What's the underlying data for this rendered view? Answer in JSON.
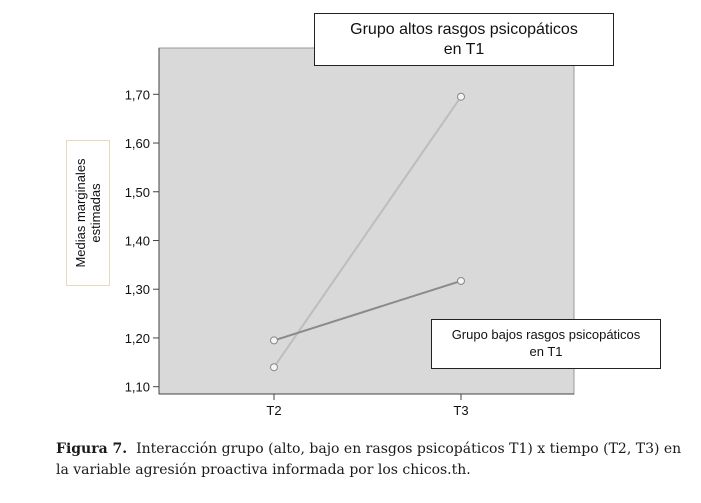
{
  "chart_data": {
    "type": "line",
    "categories": [
      "T2",
      "T3"
    ],
    "series": [
      {
        "name": "Grupo altos rasgos psicopáticos en T1",
        "values": [
          1.14,
          1.695
        ],
        "color": "#bdbdbd"
      },
      {
        "name": "Grupo bajos rasgos psicopáticos en T1",
        "values": [
          1.195,
          1.317
        ],
        "color": "#8a8a8a"
      }
    ],
    "ylabel": "Medias marginales estimadas",
    "ylim": [
      1.085,
      1.795
    ],
    "yticks": [
      1.1,
      1.2,
      1.3,
      1.4,
      1.5,
      1.6,
      1.7
    ],
    "ytick_labels": [
      "1,10",
      "1,20",
      "1,30",
      "1,40",
      "1,50",
      "1,60",
      "1,70"
    ],
    "plot_background": "#d9d9d9"
  },
  "ylabel_line1": "Medias marginales",
  "ylabel_line2": "estimadas",
  "callout_high_line1": "Grupo altos rasgos psicopáticos",
  "callout_high_line2": "en T1",
  "callout_low_line1": "Grupo bajos rasgos psicopáticos",
  "callout_low_line2": "en T1",
  "caption_label": "Figura 7.",
  "caption_text": "Interacción grupo (alto, bajo en rasgos psicopáticos T1) x tiempo (T2, T3) en la variable agresión proactiva informada por los chicos.th."
}
